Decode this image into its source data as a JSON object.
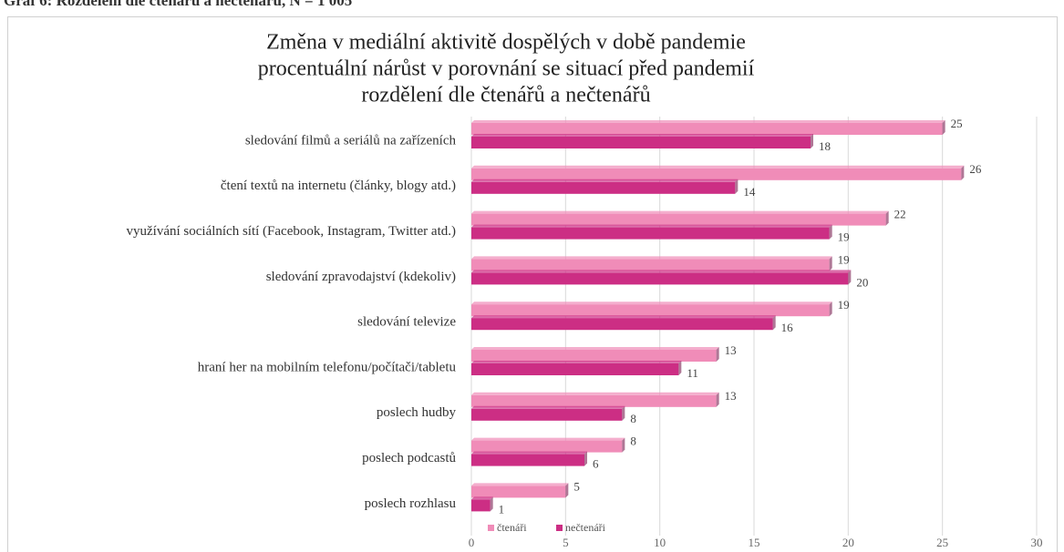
{
  "heading": "Graf 6: Rozdělení dle čtenářů a nečtenářů, N = 1 005",
  "chart_data": {
    "type": "bar",
    "orientation": "horizontal",
    "title": [
      "Změna v mediální aktivitě dospělých v době pandemie",
      "procentuální nárůst v porovnání se situací před pandemií",
      "rozdělení dle čtenářů a nečtenářů"
    ],
    "categories": [
      "sledování filmů a seriálů na zařízeních",
      "čtení textů na internetu (články, blogy atd.)",
      "využívání sociálních sítí (Facebook, Instagram, Twitter atd.)",
      "sledování zpravodajství (kdekoliv)",
      "sledování televize",
      "hraní her na mobilním telefonu/počítači/tabletu",
      "poslech hudby",
      "poslech podcastů",
      "poslech rozhlasu"
    ],
    "series": [
      {
        "name": "čtenáři",
        "color": "#f08cb8",
        "values": [
          25,
          26,
          22,
          19,
          19,
          13,
          13,
          8,
          5
        ]
      },
      {
        "name": "nečtenáři",
        "color": "#cc2e84",
        "values": [
          18,
          14,
          19,
          20,
          16,
          11,
          8,
          6,
          1
        ]
      }
    ],
    "xlim": [
      0,
      30
    ],
    "xticks": [
      0,
      5,
      10,
      15,
      20,
      25,
      30
    ],
    "grid": true,
    "legend": "bottom"
  }
}
